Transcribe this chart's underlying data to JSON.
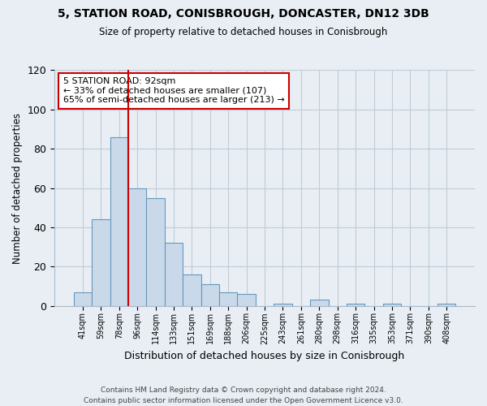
{
  "title1": "5, STATION ROAD, CONISBROUGH, DONCASTER, DN12 3DB",
  "title2": "Size of property relative to detached houses in Conisbrough",
  "xlabel": "Distribution of detached houses by size in Conisbrough",
  "ylabel": "Number of detached properties",
  "bar_labels": [
    "41sqm",
    "59sqm",
    "78sqm",
    "96sqm",
    "114sqm",
    "133sqm",
    "151sqm",
    "169sqm",
    "188sqm",
    "206sqm",
    "225sqm",
    "243sqm",
    "261sqm",
    "280sqm",
    "298sqm",
    "316sqm",
    "335sqm",
    "353sqm",
    "371sqm",
    "390sqm",
    "408sqm"
  ],
  "bar_values": [
    7,
    44,
    86,
    60,
    55,
    32,
    16,
    11,
    7,
    6,
    0,
    1,
    0,
    3,
    0,
    1,
    0,
    1,
    0,
    0,
    1
  ],
  "bar_color": "#c9d9ea",
  "bar_edge_color": "#6699bb",
  "vline_color": "#cc0000",
  "vline_x": 2.5,
  "ylim": [
    0,
    120
  ],
  "yticks": [
    0,
    20,
    40,
    60,
    80,
    100,
    120
  ],
  "annotation_title": "5 STATION ROAD: 92sqm",
  "annotation_line1": "← 33% of detached houses are smaller (107)",
  "annotation_line2": "65% of semi-detached houses are larger (213) →",
  "annotation_box_color": "#ffffff",
  "annotation_box_edge": "#cc0000",
  "footer1": "Contains HM Land Registry data © Crown copyright and database right 2024.",
  "footer2": "Contains public sector information licensed under the Open Government Licence v3.0.",
  "background_color": "#e8eef4",
  "plot_bg_color": "#e8eef4",
  "grid_color": "#c0ccd8"
}
